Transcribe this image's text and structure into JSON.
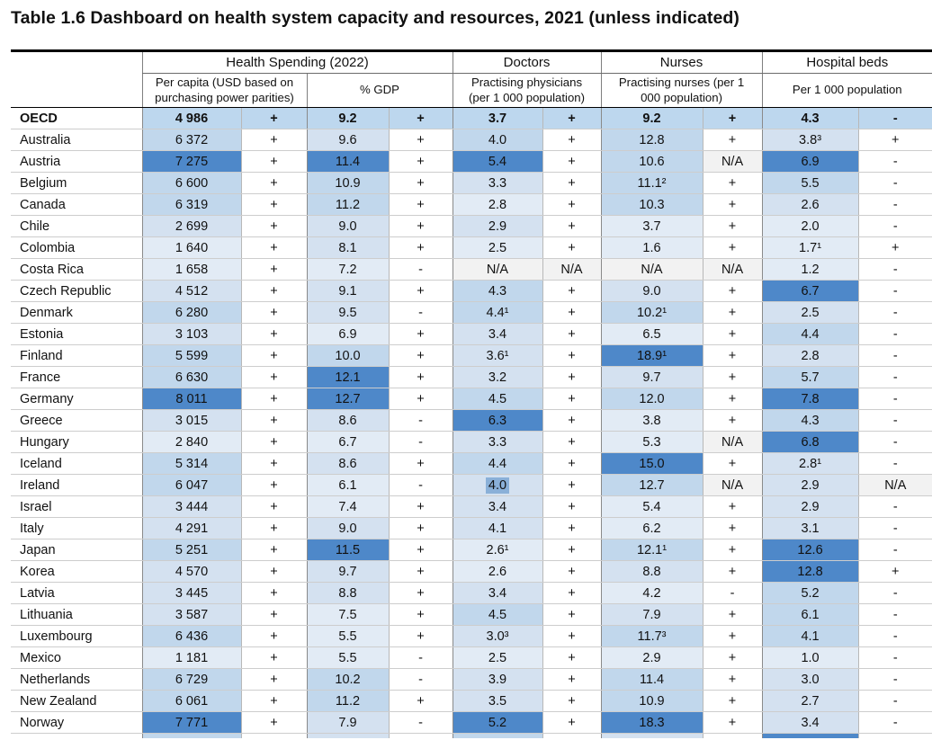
{
  "title": "Table 1.6 Dashboard on health system capacity and resources, 2021 (unless indicated)",
  "colors": {
    "dark_blue": "#4e88c9",
    "mid_blue": "#c1d7ec",
    "light_blue": "#d4e1f0",
    "lighter_blue": "#e2ebf5",
    "oecd_row_blue": "#bdd7ee",
    "na_gray": "#f2f2f2",
    "selection_highlight": "#8ab0d8"
  },
  "columns": {
    "groups": [
      {
        "label": "Health Spending (2022)"
      },
      {
        "label": "Doctors"
      },
      {
        "label": "Nurses"
      },
      {
        "label": "Hospital beds"
      }
    ],
    "subheaders": [
      "Per capita (USD based on purchasing power parities)",
      "% GDP",
      "Practising physicians (per 1 000 population)",
      "Practising nurses (per 1 000 population)",
      "Per 1 000 population"
    ]
  },
  "rows": [
    {
      "country": "OECD",
      "bold": true,
      "v": [
        "4 986",
        "9.2",
        "3.7",
        "9.2",
        "4.3"
      ],
      "vs": [
        "oecd",
        "oecd",
        "oecd",
        "oecd",
        "oecd"
      ],
      "sg": [
        "+",
        "+",
        "+",
        "+",
        "-"
      ],
      "ss": [
        "oecd",
        "oecd",
        "oecd",
        "oecd",
        "oecd"
      ]
    },
    {
      "country": "Australia",
      "v": [
        "6 372",
        "9.6",
        "4.0",
        "12.8",
        "3.8³"
      ],
      "vs": [
        "m",
        "l2",
        "m",
        "m",
        "l2"
      ],
      "sg": [
        "+",
        "+",
        "+",
        "+",
        "+"
      ],
      "ss": [
        "w",
        "w",
        "w",
        "w",
        "w"
      ]
    },
    {
      "country": "Austria",
      "v": [
        "7 275",
        "11.4",
        "5.4",
        "10.6",
        "6.9"
      ],
      "vs": [
        "d",
        "d",
        "d",
        "m",
        "d"
      ],
      "sg": [
        "+",
        "+",
        "+",
        "N/A",
        "-"
      ],
      "ss": [
        "w",
        "w",
        "w",
        "na",
        "w"
      ]
    },
    {
      "country": "Belgium",
      "v": [
        "6 600",
        "10.9",
        "3.3",
        "11.1²",
        "5.5"
      ],
      "vs": [
        "m",
        "m",
        "l2",
        "m",
        "m"
      ],
      "sg": [
        "+",
        "+",
        "+",
        "+",
        "-"
      ],
      "ss": [
        "w",
        "w",
        "w",
        "w",
        "w"
      ]
    },
    {
      "country": "Canada",
      "v": [
        "6 319",
        "11.2",
        "2.8",
        "10.3",
        "2.6"
      ],
      "vs": [
        "m",
        "m",
        "l1",
        "m",
        "l2"
      ],
      "sg": [
        "+",
        "+",
        "+",
        "+",
        "-"
      ],
      "ss": [
        "w",
        "w",
        "w",
        "w",
        "w"
      ]
    },
    {
      "country": "Chile",
      "v": [
        "2 699",
        "9.0",
        "2.9",
        "3.7",
        "2.0"
      ],
      "vs": [
        "l2",
        "l2",
        "l2",
        "l1",
        "l1"
      ],
      "sg": [
        "+",
        "+",
        "+",
        "+",
        "-"
      ],
      "ss": [
        "w",
        "w",
        "w",
        "w",
        "w"
      ]
    },
    {
      "country": "Colombia",
      "v": [
        "1 640",
        "8.1",
        "2.5",
        "1.6",
        "1.7¹"
      ],
      "vs": [
        "l1",
        "l2",
        "l1",
        "l1",
        "l1"
      ],
      "sg": [
        "+",
        "+",
        "+",
        "+",
        "+"
      ],
      "ss": [
        "w",
        "w",
        "w",
        "w",
        "w"
      ]
    },
    {
      "country": "Costa Rica",
      "v": [
        "1 658",
        "7.2",
        "N/A",
        "N/A",
        "1.2"
      ],
      "vs": [
        "l1",
        "l1",
        "na",
        "na",
        "l1"
      ],
      "sg": [
        "+",
        "-",
        "N/A",
        "N/A",
        "-"
      ],
      "ss": [
        "w",
        "w",
        "na",
        "na",
        "w"
      ]
    },
    {
      "country": "Czech Republic",
      "v": [
        "4 512",
        "9.1",
        "4.3",
        "9.0",
        "6.7"
      ],
      "vs": [
        "l2",
        "l2",
        "m",
        "l2",
        "d"
      ],
      "sg": [
        "+",
        "+",
        "+",
        "+",
        "-"
      ],
      "ss": [
        "w",
        "w",
        "w",
        "w",
        "w"
      ]
    },
    {
      "country": "Denmark",
      "v": [
        "6 280",
        "9.5",
        "4.4¹",
        "10.2¹",
        "2.5"
      ],
      "vs": [
        "m",
        "l2",
        "m",
        "m",
        "l2"
      ],
      "sg": [
        "+",
        "-",
        "+",
        "+",
        "-"
      ],
      "ss": [
        "w",
        "w",
        "w",
        "w",
        "w"
      ]
    },
    {
      "country": "Estonia",
      "v": [
        "3 103",
        "6.9",
        "3.4",
        "6.5",
        "4.4"
      ],
      "vs": [
        "l2",
        "l1",
        "l2",
        "l1",
        "m"
      ],
      "sg": [
        "+",
        "+",
        "+",
        "+",
        "-"
      ],
      "ss": [
        "w",
        "w",
        "w",
        "w",
        "w"
      ]
    },
    {
      "country": "Finland",
      "v": [
        "5 599",
        "10.0",
        "3.6¹",
        "18.9¹",
        "2.8"
      ],
      "vs": [
        "m",
        "m",
        "l2",
        "d",
        "l2"
      ],
      "sg": [
        "+",
        "+",
        "+",
        "+",
        "-"
      ],
      "ss": [
        "w",
        "w",
        "w",
        "w",
        "w"
      ]
    },
    {
      "country": "France",
      "v": [
        "6 630",
        "12.1",
        "3.2",
        "9.7",
        "5.7"
      ],
      "vs": [
        "m",
        "d",
        "l2",
        "l2",
        "m"
      ],
      "sg": [
        "+",
        "+",
        "+",
        "+",
        "-"
      ],
      "ss": [
        "w",
        "w",
        "w",
        "w",
        "w"
      ]
    },
    {
      "country": "Germany",
      "v": [
        "8 011",
        "12.7",
        "4.5",
        "12.0",
        "7.8"
      ],
      "vs": [
        "d",
        "d",
        "m",
        "m",
        "d"
      ],
      "sg": [
        "+",
        "+",
        "+",
        "+",
        "-"
      ],
      "ss": [
        "w",
        "w",
        "w",
        "w",
        "w"
      ]
    },
    {
      "country": "Greece",
      "v": [
        "3 015",
        "8.6",
        "6.3",
        "3.8",
        "4.3"
      ],
      "vs": [
        "l2",
        "l2",
        "d",
        "l1",
        "m"
      ],
      "sg": [
        "+",
        "-",
        "+",
        "+",
        "-"
      ],
      "ss": [
        "w",
        "w",
        "w",
        "w",
        "w"
      ]
    },
    {
      "country": "Hungary",
      "v": [
        "2 840",
        "6.7",
        "3.3",
        "5.3",
        "6.8"
      ],
      "vs": [
        "l1",
        "l1",
        "l2",
        "l1",
        "d"
      ],
      "sg": [
        "+",
        "-",
        "+",
        "N/A",
        "-"
      ],
      "ss": [
        "w",
        "w",
        "w",
        "na",
        "w"
      ]
    },
    {
      "country": "Iceland",
      "v": [
        "5 314",
        "8.6",
        "4.4",
        "15.0",
        "2.8¹"
      ],
      "vs": [
        "m",
        "l2",
        "m",
        "d",
        "l2"
      ],
      "sg": [
        "+",
        "+",
        "+",
        "+",
        "-"
      ],
      "ss": [
        "w",
        "w",
        "w",
        "w",
        "w"
      ]
    },
    {
      "country": "Ireland",
      "hl": 2,
      "v": [
        "6 047",
        "6.1",
        "4.0",
        "12.7",
        "2.9"
      ],
      "vs": [
        "m",
        "l1",
        "l2",
        "m",
        "l2"
      ],
      "sg": [
        "+",
        "-",
        "+",
        "N/A",
        "N/A"
      ],
      "ss": [
        "w",
        "w",
        "w",
        "na",
        "na"
      ]
    },
    {
      "country": "Israel",
      "v": [
        "3 444",
        "7.4",
        "3.4",
        "5.4",
        "2.9"
      ],
      "vs": [
        "l2",
        "l1",
        "l2",
        "l1",
        "l2"
      ],
      "sg": [
        "+",
        "+",
        "+",
        "+",
        "-"
      ],
      "ss": [
        "w",
        "w",
        "w",
        "w",
        "w"
      ]
    },
    {
      "country": "Italy",
      "v": [
        "4 291",
        "9.0",
        "4.1",
        "6.2",
        "3.1"
      ],
      "vs": [
        "l2",
        "l2",
        "l2",
        "l1",
        "l2"
      ],
      "sg": [
        "+",
        "+",
        "+",
        "+",
        "-"
      ],
      "ss": [
        "w",
        "w",
        "w",
        "w",
        "w"
      ]
    },
    {
      "country": "Japan",
      "v": [
        "5 251",
        "11.5",
        "2.6¹",
        "12.1¹",
        "12.6"
      ],
      "vs": [
        "m",
        "d",
        "l1",
        "m",
        "d"
      ],
      "sg": [
        "+",
        "+",
        "+",
        "+",
        "-"
      ],
      "ss": [
        "w",
        "w",
        "w",
        "w",
        "w"
      ]
    },
    {
      "country": "Korea",
      "v": [
        "4 570",
        "9.7",
        "2.6",
        "8.8",
        "12.8"
      ],
      "vs": [
        "l2",
        "l2",
        "l1",
        "l2",
        "d"
      ],
      "sg": [
        "+",
        "+",
        "+",
        "+",
        "+"
      ],
      "ss": [
        "w",
        "w",
        "w",
        "w",
        "w"
      ]
    },
    {
      "country": "Latvia",
      "v": [
        "3 445",
        "8.8",
        "3.4",
        "4.2",
        "5.2"
      ],
      "vs": [
        "l2",
        "l2",
        "l2",
        "l1",
        "m"
      ],
      "sg": [
        "+",
        "+",
        "+",
        "-",
        "-"
      ],
      "ss": [
        "w",
        "w",
        "w",
        "w",
        "w"
      ]
    },
    {
      "country": "Lithuania",
      "v": [
        "3 587",
        "7.5",
        "4.5",
        "7.9",
        "6.1"
      ],
      "vs": [
        "l2",
        "l1",
        "m",
        "l2",
        "m"
      ],
      "sg": [
        "+",
        "+",
        "+",
        "+",
        "-"
      ],
      "ss": [
        "w",
        "w",
        "w",
        "w",
        "w"
      ]
    },
    {
      "country": "Luxembourg",
      "v": [
        "6 436",
        "5.5",
        "3.0³",
        "11.7³",
        "4.1"
      ],
      "vs": [
        "m",
        "l1",
        "l2",
        "m",
        "m"
      ],
      "sg": [
        "+",
        "+",
        "+",
        "+",
        "-"
      ],
      "ss": [
        "w",
        "w",
        "w",
        "w",
        "w"
      ]
    },
    {
      "country": "Mexico",
      "v": [
        "1 181",
        "5.5",
        "2.5",
        "2.9",
        "1.0"
      ],
      "vs": [
        "l1",
        "l1",
        "l1",
        "l1",
        "l1"
      ],
      "sg": [
        "+",
        "-",
        "+",
        "+",
        "-"
      ],
      "ss": [
        "w",
        "w",
        "w",
        "w",
        "w"
      ]
    },
    {
      "country": "Netherlands",
      "v": [
        "6 729",
        "10.2",
        "3.9",
        "11.4",
        "3.0"
      ],
      "vs": [
        "m",
        "m",
        "l2",
        "m",
        "l2"
      ],
      "sg": [
        "+",
        "-",
        "+",
        "+",
        "-"
      ],
      "ss": [
        "w",
        "w",
        "w",
        "w",
        "w"
      ]
    },
    {
      "country": "New Zealand",
      "v": [
        "6 061",
        "11.2",
        "3.5",
        "10.9",
        "2.7"
      ],
      "vs": [
        "m",
        "m",
        "l2",
        "m",
        "l2"
      ],
      "sg": [
        "+",
        "+",
        "+",
        "+",
        "-"
      ],
      "ss": [
        "w",
        "w",
        "w",
        "w",
        "w"
      ]
    },
    {
      "country": "Norway",
      "v": [
        "7 771",
        "7.9",
        "5.2",
        "18.3",
        "3.4"
      ],
      "vs": [
        "d",
        "l2",
        "d",
        "d",
        "l2"
      ],
      "sg": [
        "+",
        "-",
        "+",
        "+",
        "-"
      ],
      "ss": [
        "w",
        "w",
        "w",
        "w",
        "w"
      ]
    }
  ],
  "partial_row": {
    "shades": [
      "m",
      "l2",
      "m",
      "l2",
      "d"
    ]
  }
}
